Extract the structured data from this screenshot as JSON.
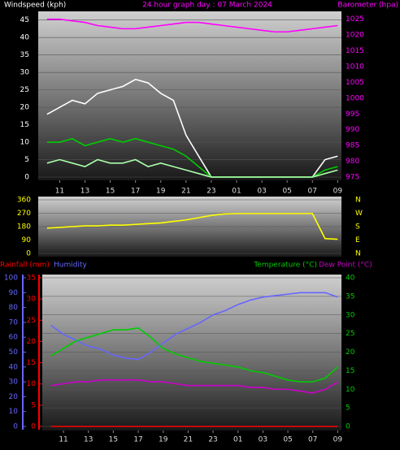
{
  "chart_data": [
    {
      "type": "line",
      "title": "24 hour graph day : 07 March 2024",
      "y_label": "Windspeed (kph)",
      "y2_label": "Barometer (hpa)",
      "y_color": "#ffffff",
      "y2_color": "#ff00ff",
      "grid": "y",
      "x": [
        10,
        11,
        12,
        13,
        14,
        15,
        16,
        17,
        18,
        19,
        20,
        21,
        22,
        23,
        24,
        25,
        26,
        27,
        28,
        29,
        30,
        31,
        32,
        33
      ],
      "xlim": [
        9.3,
        33.3
      ],
      "xticks": [
        11,
        13,
        15,
        17,
        19,
        21,
        23,
        {
          "value": 25,
          "label": "01"
        },
        {
          "value": 27,
          "label": "03"
        },
        {
          "value": 29,
          "label": "05"
        },
        {
          "value": 31,
          "label": "07"
        },
        {
          "value": 33,
          "label": "09"
        }
      ],
      "ylim": [
        0,
        47.5
      ],
      "yticks": [
        0,
        5,
        10,
        15,
        20,
        25,
        30,
        35,
        40,
        45
      ],
      "y2lim": [
        975,
        1027.5
      ],
      "y2ticks": [
        975,
        980,
        985,
        990,
        995,
        1000,
        1005,
        1010,
        1015,
        1020,
        1025
      ],
      "series": [
        {
          "color": "#ffffff",
          "axis": "y",
          "values": [
            18,
            20,
            22,
            21,
            24,
            25,
            26,
            28,
            27,
            24,
            22,
            12,
            6,
            0,
            0,
            0,
            0,
            0,
            0,
            0,
            0,
            0,
            5,
            6
          ]
        },
        {
          "color": "#00cc00",
          "axis": "y",
          "values": [
            10,
            10,
            11,
            9,
            10,
            11,
            10,
            11,
            10,
            9,
            8,
            6,
            3,
            0,
            0,
            0,
            0,
            0,
            0,
            0,
            0,
            0,
            2,
            3
          ]
        },
        {
          "color": "#aaffaa",
          "axis": "y",
          "values": [
            4,
            5,
            4,
            3,
            5,
            4,
            4,
            5,
            3,
            4,
            3,
            2,
            1,
            0,
            0,
            0,
            0,
            0,
            0,
            0,
            0,
            0,
            1,
            2
          ]
        },
        {
          "color": "#ff00ff",
          "axis": "y2",
          "values": [
            1025,
            1025,
            1024.5,
            1024,
            1023,
            1022.5,
            1022,
            1022,
            1022.5,
            1023,
            1023.5,
            1024,
            1024,
            1023.5,
            1023,
            1022.5,
            1022,
            1021.5,
            1021,
            1021,
            1021.5,
            1022,
            1022.5,
            1023
          ]
        }
      ]
    },
    {
      "type": "line",
      "y_color": "#ffff00",
      "y2_color": "#ffff00",
      "grid": "y",
      "x": [
        10,
        11,
        12,
        13,
        14,
        15,
        16,
        17,
        18,
        19,
        20,
        21,
        22,
        23,
        24,
        25,
        26,
        27,
        28,
        29,
        30,
        31,
        32,
        33
      ],
      "xlim": [
        9.3,
        33.3
      ],
      "ylim": [
        0,
        360
      ],
      "yticks": [
        0,
        90,
        180,
        270,
        360
      ],
      "y2lim": [
        0,
        360
      ],
      "y2ticks": [
        {
          "value": 360,
          "label": "N"
        },
        {
          "value": 270,
          "label": "W"
        },
        {
          "value": 180,
          "label": "S"
        },
        {
          "value": 90,
          "label": "E"
        },
        {
          "value": 0,
          "label": "N"
        }
      ],
      "series": [
        {
          "color": "#ffff00",
          "axis": "y",
          "values": [
            170,
            175,
            180,
            185,
            185,
            190,
            190,
            195,
            200,
            205,
            215,
            225,
            240,
            255,
            265,
            268,
            268,
            268,
            268,
            268,
            268,
            268,
            100,
            95
          ]
        }
      ]
    },
    {
      "type": "line",
      "y_color": "#6666ff",
      "y2_color": "#00cc00",
      "y3_color": "#ff0000",
      "grid": "y2",
      "x": [
        10,
        11,
        12,
        13,
        14,
        15,
        16,
        17,
        18,
        19,
        20,
        21,
        22,
        23,
        24,
        25,
        26,
        27,
        28,
        29,
        30,
        31,
        32,
        33
      ],
      "xlim": [
        9.3,
        33.3
      ],
      "xticks": [
        11,
        13,
        15,
        17,
        19,
        21,
        23,
        {
          "value": 25,
          "label": "01"
        },
        {
          "value": 27,
          "label": "03"
        },
        {
          "value": 29,
          "label": "05"
        },
        {
          "value": 31,
          "label": "07"
        },
        {
          "value": 33,
          "label": "09"
        }
      ],
      "ylim": [
        0,
        100
      ],
      "yticks": [
        0,
        10,
        20,
        30,
        40,
        50,
        60,
        70,
        80,
        90,
        100
      ],
      "y2lim": [
        0,
        40
      ],
      "y2ticks": [
        0,
        5,
        10,
        15,
        20,
        25,
        30,
        35,
        40
      ],
      "y3lim": [
        0,
        35
      ],
      "y3ticks": [
        0,
        5,
        10,
        15,
        20,
        25,
        30,
        35
      ],
      "series": [
        {
          "name": "Rainfall (mm)",
          "color": "#ff0000",
          "axis": "y3",
          "values": [
            0,
            0,
            0,
            0,
            0,
            0,
            0,
            0,
            0,
            0,
            0,
            0,
            0,
            0,
            0,
            0,
            0,
            0,
            0,
            0,
            0,
            0,
            0,
            0
          ]
        },
        {
          "name": "Humidity",
          "color": "#6666ff",
          "axis": "y",
          "values": [
            68,
            62,
            58,
            54,
            52,
            48,
            46,
            45,
            50,
            56,
            62,
            66,
            70,
            75,
            78,
            82,
            85,
            87,
            88,
            89,
            90,
            90,
            90,
            87
          ]
        },
        {
          "name": "Temperature (°C)",
          "color": "#00cc00",
          "axis": "y2",
          "values": [
            19,
            21,
            23,
            24,
            25,
            26,
            26,
            26.5,
            24,
            21,
            19.5,
            18.5,
            17.5,
            17,
            16.5,
            16,
            15,
            14.5,
            13.5,
            12.5,
            12,
            12,
            13,
            16
          ]
        },
        {
          "name": "Dew Point (°C)",
          "color": "#cc00cc",
          "axis": "y2",
          "values": [
            11,
            11.5,
            12,
            12,
            12.5,
            12.5,
            12.5,
            12.5,
            12,
            12,
            11.5,
            11,
            11,
            11,
            11,
            11,
            10.5,
            10.5,
            10,
            10,
            9.5,
            9,
            10,
            12
          ]
        }
      ]
    }
  ]
}
